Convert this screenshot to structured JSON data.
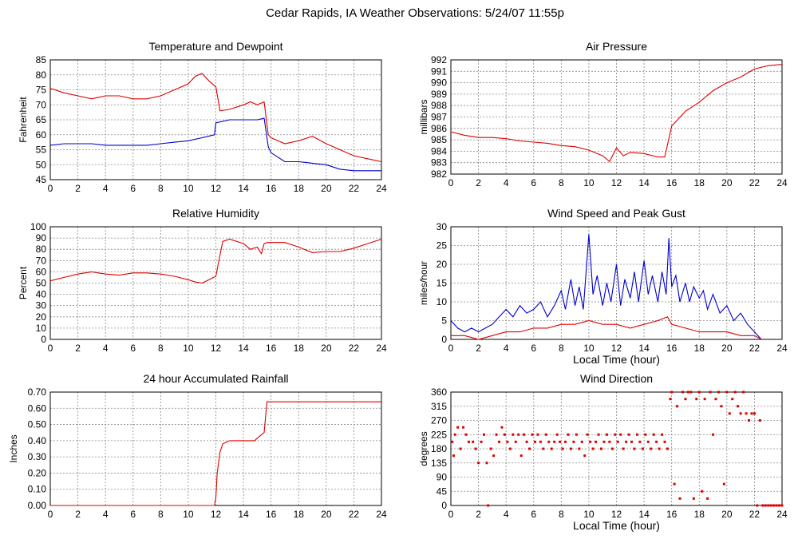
{
  "title": "Cedar Rapids, IA Weather Observations: 5/24/07 11:55p",
  "colors": {
    "red": "#dd0000",
    "blue": "#0000cc",
    "grid": "#777777"
  },
  "chart_data": [
    {
      "id": "temp",
      "type": "line",
      "title": "Temperature and Dewpoint",
      "xlabel": "",
      "ylabel": "Fahrenheit",
      "xlim": [
        0,
        24
      ],
      "ylim": [
        45,
        85
      ],
      "xticks": [
        0,
        2,
        4,
        6,
        8,
        10,
        12,
        14,
        16,
        18,
        20,
        22,
        24
      ],
      "yticks": [
        45,
        50,
        55,
        60,
        65,
        70,
        75,
        80,
        85
      ],
      "series": [
        {
          "color": "#dd0000",
          "x": [
            0,
            1,
            2,
            3,
            4,
            5,
            6,
            7,
            8,
            9,
            10,
            10.5,
            11,
            11.5,
            12,
            12.3,
            13,
            14,
            14.5,
            15,
            15.5,
            15.8,
            16,
            17,
            18,
            19,
            20,
            21,
            22,
            23,
            24
          ],
          "y": [
            75.5,
            74,
            73,
            72,
            73,
            73,
            72,
            72,
            73,
            75,
            77,
            79.5,
            80.5,
            78,
            76,
            68,
            68.5,
            70,
            71,
            70,
            71,
            60,
            59,
            57,
            58,
            59.5,
            57,
            55,
            53,
            52,
            51
          ]
        },
        {
          "color": "#0000cc",
          "x": [
            0,
            1,
            2,
            3,
            4,
            5,
            6,
            7,
            8,
            9,
            10,
            11,
            11.9,
            12,
            13,
            14,
            15,
            15.5,
            15.8,
            16,
            17,
            18,
            19,
            20,
            21,
            22,
            23,
            24
          ],
          "y": [
            56.5,
            57,
            57,
            57,
            56.5,
            56.5,
            56.5,
            56.5,
            57,
            57.5,
            58,
            59,
            60,
            64,
            65,
            65,
            65,
            65.5,
            56,
            54,
            51,
            51,
            50.5,
            50,
            48.5,
            48,
            48,
            48
          ]
        }
      ]
    },
    {
      "id": "pressure",
      "type": "line",
      "title": "Air Pressure",
      "xlabel": "",
      "ylabel": "millibars",
      "xlim": [
        0,
        24
      ],
      "ylim": [
        982,
        992
      ],
      "xticks": [
        0,
        2,
        4,
        6,
        8,
        10,
        12,
        14,
        16,
        18,
        20,
        22,
        24
      ],
      "yticks": [
        982,
        983,
        984,
        985,
        986,
        987,
        988,
        989,
        990,
        991,
        992
      ],
      "series": [
        {
          "color": "#dd0000",
          "x": [
            0,
            1,
            2,
            3,
            4,
            5,
            6,
            7,
            8,
            9,
            10,
            11,
            11.5,
            12,
            12.5,
            13,
            14,
            15,
            15.5,
            16,
            17,
            18,
            19,
            20,
            21,
            22,
            23,
            24
          ],
          "y": [
            985.7,
            985.4,
            985.2,
            985.2,
            985.1,
            984.9,
            984.8,
            984.7,
            984.5,
            984.4,
            984.1,
            983.6,
            983.1,
            984.3,
            983.6,
            983.9,
            983.8,
            983.5,
            983.5,
            986.2,
            987.5,
            988.3,
            989.3,
            990,
            990.5,
            991.2,
            991.5,
            991.6
          ]
        }
      ]
    },
    {
      "id": "humidity",
      "type": "line",
      "title": "Relative Humidity",
      "xlabel": "",
      "ylabel": "Percent",
      "xlim": [
        0,
        24
      ],
      "ylim": [
        0,
        100
      ],
      "xticks": [
        0,
        2,
        4,
        6,
        8,
        10,
        12,
        14,
        16,
        18,
        20,
        22,
        24
      ],
      "yticks": [
        0,
        10,
        20,
        30,
        40,
        50,
        60,
        70,
        80,
        90,
        100
      ],
      "series": [
        {
          "color": "#dd0000",
          "x": [
            0,
            1,
            2,
            3,
            4,
            5,
            6,
            7,
            8,
            9,
            10,
            10.5,
            11,
            11.5,
            12,
            12.3,
            12.5,
            13,
            14,
            14.5,
            15,
            15.3,
            15.5,
            15.7,
            16,
            17,
            18,
            19,
            20,
            21,
            22,
            23,
            24
          ],
          "y": [
            52,
            55,
            58,
            60,
            58,
            57,
            59,
            59,
            58,
            56,
            53,
            51,
            50,
            53,
            56,
            75,
            87,
            89,
            85,
            80,
            82,
            76,
            85,
            86,
            86,
            86,
            82,
            77,
            78,
            78,
            81,
            85,
            89
          ]
        }
      ]
    },
    {
      "id": "wind",
      "type": "line",
      "title": "Wind Speed and Peak Gust",
      "xlabel": "Local Time (hour)",
      "ylabel": "miles/hour",
      "xlim": [
        0,
        24
      ],
      "ylim": [
        0,
        30
      ],
      "xticks": [
        0,
        2,
        4,
        6,
        8,
        10,
        12,
        14,
        16,
        18,
        20,
        22,
        24
      ],
      "yticks": [
        0,
        5,
        10,
        15,
        20,
        25,
        30
      ],
      "series": [
        {
          "color": "#0000cc",
          "x": [
            0,
            0.5,
            1,
            1.5,
            2,
            2.5,
            3,
            3.5,
            4,
            4.5,
            5,
            5.5,
            6,
            6.5,
            7,
            7.5,
            8,
            8.3,
            8.7,
            9,
            9.3,
            9.6,
            10,
            10.3,
            10.6,
            11,
            11.3,
            11.6,
            12,
            12.3,
            12.6,
            13,
            13.3,
            13.6,
            14,
            14.3,
            14.6,
            15,
            15.3,
            15.6,
            15.8,
            16,
            16.3,
            16.6,
            17,
            17.3,
            17.6,
            18,
            18.3,
            18.6,
            19,
            19.5,
            20,
            20.5,
            21,
            21.5,
            22,
            22.5
          ],
          "y": [
            5,
            3,
            2,
            3,
            2,
            3,
            4,
            6,
            8,
            6,
            9,
            7,
            8,
            10,
            6,
            9,
            13,
            8,
            16,
            9,
            14,
            8,
            28,
            12,
            17,
            9,
            15,
            10,
            20,
            9,
            16,
            11,
            18,
            10,
            21,
            12,
            17,
            10,
            18,
            12,
            27,
            14,
            17,
            10,
            15,
            10,
            14,
            11,
            13,
            8,
            12,
            7,
            9,
            5,
            7,
            4,
            2,
            0
          ]
        },
        {
          "color": "#dd0000",
          "x": [
            0,
            1,
            2,
            3,
            4,
            5,
            6,
            7,
            8,
            9,
            10,
            11,
            12,
            13,
            14,
            15,
            15.7,
            16,
            17,
            18,
            19,
            20,
            21,
            22,
            22.5
          ],
          "y": [
            1,
            1,
            0,
            1,
            2,
            2,
            3,
            3,
            4,
            4,
            5,
            4,
            4,
            3,
            4,
            5,
            6,
            4,
            3,
            2,
            2,
            2,
            1,
            1,
            0
          ]
        }
      ]
    },
    {
      "id": "rain",
      "type": "line",
      "title": "24 hour Accumulated Rainfall",
      "xlabel": "",
      "ylabel": "Inches",
      "xlim": [
        0,
        24
      ],
      "ylim": [
        0,
        0.7
      ],
      "xticks": [
        0,
        2,
        4,
        6,
        8,
        10,
        12,
        14,
        16,
        18,
        20,
        22,
        24
      ],
      "yticks": [
        "0.00",
        "0.10",
        "0.20",
        "0.30",
        "0.40",
        "0.50",
        "0.60",
        "0.70"
      ],
      "series": [
        {
          "color": "#dd0000",
          "x": [
            0,
            11.9,
            12,
            12.1,
            12.3,
            12.5,
            13,
            14,
            14.8,
            15.2,
            15.5,
            15.7,
            16,
            24
          ],
          "y": [
            0,
            0,
            0.05,
            0.2,
            0.33,
            0.38,
            0.4,
            0.4,
            0.4,
            0.43,
            0.45,
            0.64,
            0.64,
            0.64
          ]
        }
      ]
    },
    {
      "id": "direction",
      "type": "scatter",
      "title": "Wind Direction",
      "xlabel": "Local Time (hour)",
      "ylabel": "degrees",
      "xlim": [
        0,
        24
      ],
      "ylim": [
        0,
        360
      ],
      "xticks": [
        0,
        2,
        4,
        6,
        8,
        10,
        12,
        14,
        16,
        18,
        20,
        22,
        24
      ],
      "yticks": [
        0,
        45,
        90,
        135,
        180,
        225,
        270,
        315,
        360
      ],
      "series": [
        {
          "color": "#dd0000",
          "x": [
            0.1,
            0.2,
            0.3,
            0.5,
            0.7,
            0.9,
            1.1,
            1.3,
            1.6,
            1.8,
            2.0,
            2.2,
            2.4,
            2.6,
            2.7,
            2.9,
            3.1,
            3.3,
            3.5,
            3.7,
            3.9,
            4.1,
            4.3,
            4.5,
            4.7,
            4.9,
            5.1,
            5.3,
            5.5,
            5.7,
            5.9,
            6.1,
            6.3,
            6.5,
            6.7,
            6.9,
            7.1,
            7.3,
            7.5,
            7.7,
            7.9,
            8.1,
            8.3,
            8.5,
            8.7,
            8.9,
            9.1,
            9.3,
            9.5,
            9.7,
            9.9,
            10.1,
            10.3,
            10.5,
            10.7,
            10.9,
            11.1,
            11.3,
            11.5,
            11.7,
            11.9,
            12.1,
            12.3,
            12.5,
            12.7,
            12.9,
            13.1,
            13.3,
            13.5,
            13.7,
            13.9,
            14.1,
            14.3,
            14.5,
            14.7,
            14.9,
            15.1,
            15.3,
            15.5,
            15.7,
            15.9,
            16.0,
            16.2,
            16.4,
            16.6,
            16.8,
            17.0,
            17.2,
            17.4,
            17.6,
            17.8,
            18.0,
            18.2,
            18.4,
            18.6,
            18.8,
            19.0,
            19.2,
            19.4,
            19.6,
            19.8,
            20.0,
            20.2,
            20.4,
            20.6,
            20.8,
            21.0,
            21.2,
            21.4,
            21.6,
            21.8,
            22.0,
            22.2,
            22.4,
            22.6,
            22.8,
            23.0,
            23.2,
            23.4,
            23.6,
            23.8,
            24.0
          ],
          "y": [
            202,
            158,
            225,
            248,
            180,
            248,
            225,
            202,
            202,
            180,
            135,
            202,
            225,
            135,
            0,
            180,
            158,
            225,
            202,
            248,
            225,
            202,
            180,
            225,
            202,
            225,
            158,
            225,
            202,
            180,
            225,
            202,
            225,
            202,
            180,
            225,
            202,
            180,
            202,
            225,
            202,
            180,
            202,
            225,
            180,
            202,
            225,
            180,
            202,
            158,
            225,
            202,
            180,
            202,
            225,
            180,
            202,
            225,
            202,
            180,
            225,
            202,
            225,
            180,
            202,
            225,
            202,
            180,
            225,
            202,
            180,
            225,
            202,
            180,
            225,
            202,
            180,
            225,
            202,
            180,
            338,
            360,
            68,
            315,
            22,
            360,
            338,
            360,
            360,
            22,
            338,
            360,
            45,
            338,
            22,
            360,
            225,
            338,
            360,
            315,
            68,
            360,
            292,
            338,
            360,
            315,
            292,
            360,
            292,
            270,
            292,
            292,
            0,
            270,
            0,
            0,
            0,
            0,
            0,
            0,
            0,
            0
          ]
        }
      ]
    }
  ]
}
